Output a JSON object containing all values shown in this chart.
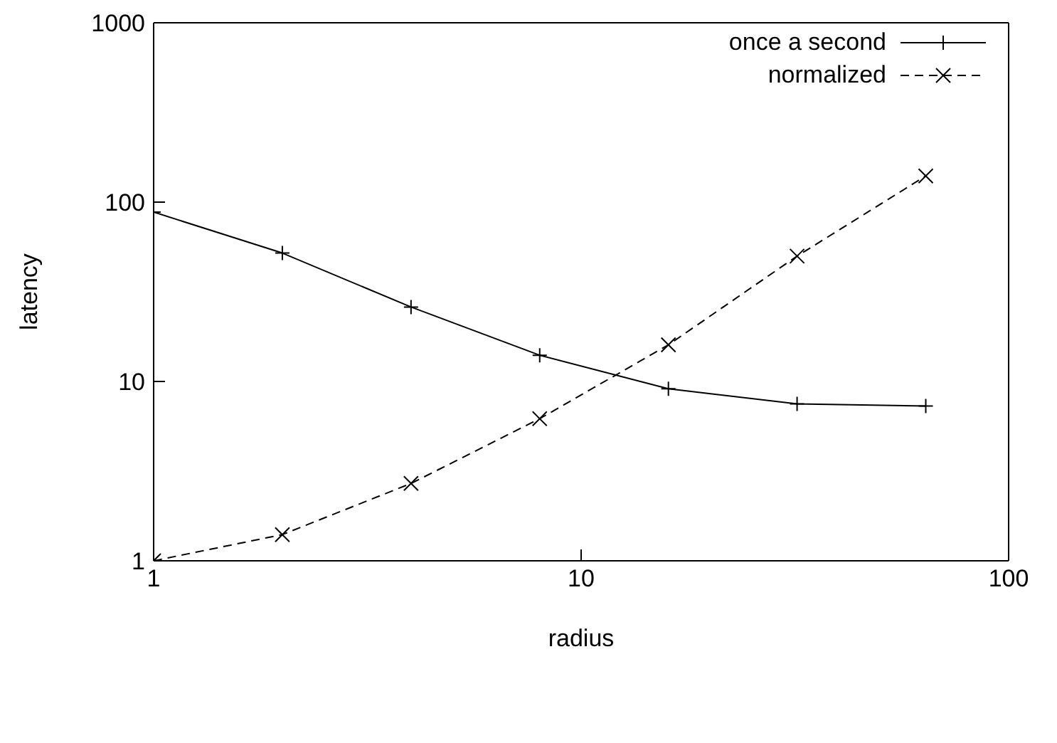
{
  "chart_data": {
    "type": "line",
    "xlabel": "radius",
    "ylabel": "latency",
    "log": "xy",
    "xlim": [
      1,
      100
    ],
    "xticks": [
      1,
      10,
      100
    ],
    "ylim": [
      1,
      1000
    ],
    "yticks": [
      1,
      10,
      100,
      1000
    ],
    "grid": false,
    "legend": "top right",
    "x": [
      1,
      2,
      4,
      8,
      16,
      32,
      64
    ],
    "series": [
      {
        "name": "once a second",
        "color": "#000000",
        "values": [
          88,
          52,
          26,
          14,
          9.1,
          7.5,
          7.3
        ],
        "marker": "plus",
        "line_style": "solid"
      },
      {
        "name": "normalized",
        "color": "#000000",
        "values": [
          1,
          1.4,
          2.7,
          6.2,
          16,
          50,
          140
        ],
        "marker": "cross",
        "line_style": "dashed"
      }
    ]
  }
}
